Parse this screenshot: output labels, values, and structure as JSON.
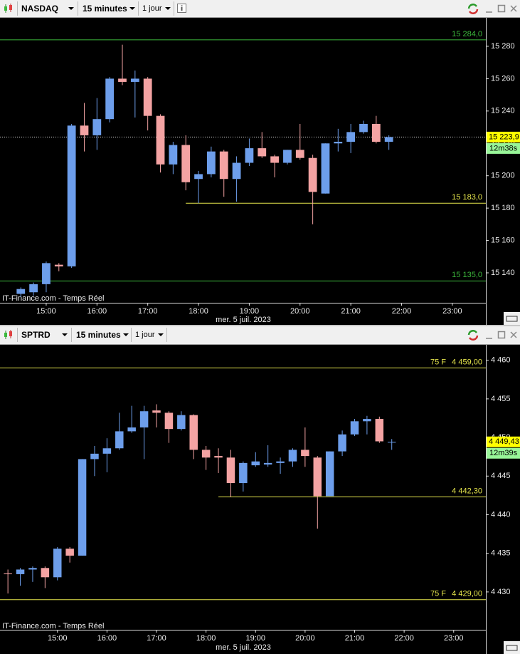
{
  "chart_data": [
    {
      "type": "candlestick",
      "symbol": "NASDAQ",
      "interval": "15 minutes",
      "range": "1 jour",
      "watermark": "IT-Finance.com - Temps Réel",
      "x_label": "mer. 5 juil. 2023",
      "up_color": "#6d9eeb",
      "down_color": "#f4a3a3",
      "grid": false,
      "x": [
        14.5,
        14.75,
        15,
        15.25,
        15.5,
        15.75,
        16,
        16.25,
        16.5,
        16.75,
        17,
        17.25,
        17.5,
        17.75,
        18,
        18.25,
        18.5,
        18.75,
        19,
        19.25,
        19.5,
        19.75,
        20,
        20.25,
        20.5,
        20.75,
        21,
        21.25,
        21.5,
        21.75
      ],
      "open": [
        15127,
        15128,
        15133,
        15145,
        15144,
        15231,
        15225,
        15235,
        15260,
        15258,
        15260,
        15237,
        15207,
        15219,
        15198,
        15201,
        15215,
        15198,
        15208,
        15217,
        15212,
        15208,
        15216,
        15211,
        15189,
        15220,
        15221,
        15227,
        15232,
        15221
      ],
      "high": [
        15131,
        15134,
        15147,
        15146,
        15232,
        15245,
        15248,
        15261,
        15281,
        15265,
        15261,
        15238,
        15221,
        15225,
        15203,
        15218,
        15216,
        15212,
        15223,
        15227,
        15213,
        15216,
        15232,
        15213,
        15220,
        15229,
        15232,
        15234,
        15237,
        15225
      ],
      "low": [
        15125,
        15126,
        15128,
        15141,
        15143,
        15215,
        15216,
        15233,
        15256,
        15236,
        15228,
        15202,
        15201,
        15191,
        15183,
        15199,
        15187,
        15184,
        15206,
        15211,
        15199,
        15207,
        15210,
        15170,
        15189,
        15215,
        15214,
        15226,
        15220,
        15216
      ],
      "close": [
        15130,
        15133,
        15146,
        15144,
        15231,
        15225,
        15235,
        15260,
        15258,
        15260,
        15237,
        15207,
        15219,
        15196,
        15201,
        15215,
        15198,
        15208,
        15217,
        15212,
        15208,
        15216,
        15211,
        15190,
        15220,
        15221,
        15227,
        15232,
        15221,
        15223.9
      ],
      "xlim": [
        14.09,
        23.66
      ],
      "xticks": [
        {
          "value": 15,
          "label": "15:00"
        },
        {
          "value": 16,
          "label": "16:00"
        },
        {
          "value": 17,
          "label": "17:00"
        },
        {
          "value": 18,
          "label": "18:00"
        },
        {
          "value": 19,
          "label": "19:00"
        },
        {
          "value": 20,
          "label": "20:00"
        },
        {
          "value": 21,
          "label": "21:00"
        },
        {
          "value": 22,
          "label": "22:00"
        },
        {
          "value": 23,
          "label": "23:00"
        }
      ],
      "ylim": [
        15121.5,
        15297.6
      ],
      "yticks": [
        {
          "value": 15140,
          "label": "15 140"
        },
        {
          "value": 15160,
          "label": "15 160"
        },
        {
          "value": 15180,
          "label": "15 180"
        },
        {
          "value": 15200,
          "label": "15 200"
        },
        {
          "value": 15220,
          "label": "15 220"
        },
        {
          "value": 15240,
          "label": "15 240"
        },
        {
          "value": 15260,
          "label": "15 260"
        },
        {
          "value": 15280,
          "label": "15 280"
        }
      ],
      "levels": [
        {
          "value": 15284,
          "label": "15 284,0",
          "color": "#3cb93c"
        },
        {
          "value": 15183,
          "label": "15 183,0",
          "color": "#e6e64c",
          "from": 17.75
        },
        {
          "value": 15135,
          "label": "15 135,0",
          "color": "#3cb93c"
        }
      ],
      "last": {
        "value": 15223.9,
        "label": "15 223,9"
      },
      "last_dotted": true,
      "timer": "12m38s"
    },
    {
      "type": "candlestick",
      "symbol": "SPTRD",
      "interval": "15 minutes",
      "range": "1 jour",
      "watermark": "IT-Finance.com - Temps Réel",
      "x_label": "mer. 5 juil. 2023",
      "up_color": "#6d9eeb",
      "down_color": "#f4a3a3",
      "grid": false,
      "x": [
        14,
        14.25,
        14.5,
        14.75,
        15,
        15.25,
        15.5,
        15.75,
        16,
        16.25,
        16.5,
        16.75,
        17,
        17.25,
        17.5,
        17.75,
        18,
        18.25,
        18.5,
        18.75,
        19,
        19.25,
        19.5,
        19.75,
        20,
        20.25,
        20.5,
        20.75,
        21,
        21.25,
        21.5,
        21.75
      ],
      "open": [
        4432.4,
        4432.3,
        4432.9,
        4433.1,
        4431.9,
        4435.6,
        4434.7,
        4447.2,
        4447.9,
        4448.6,
        4450.8,
        4451.3,
        4453.5,
        4453.2,
        4451.1,
        4452.9,
        4448.4,
        4447.6,
        4447.4,
        4444.1,
        4446.4,
        4446.5,
        4446.7,
        4446.9,
        4448.4,
        4447.4,
        4442.4,
        4448.2,
        4450.4,
        4452.1,
        4452.4,
        4449.4
      ],
      "high": [
        4432.9,
        4433.1,
        4433.3,
        4433.3,
        4435.8,
        4435.8,
        4447.2,
        4448.9,
        4449.9,
        4453.2,
        4454.1,
        4454.1,
        4454.3,
        4453.4,
        4453.4,
        4453.0,
        4448.9,
        4448.6,
        4448.4,
        4446.9,
        4448.1,
        4449.0,
        4447.4,
        4448.6,
        4451.3,
        4447.6,
        4448.2,
        4450.9,
        4452.4,
        4452.8,
        4452.7,
        4449.8
      ],
      "low": [
        4429.8,
        4430.8,
        4431.3,
        4430.5,
        4431.5,
        4433.8,
        4434.7,
        4445.0,
        4445.5,
        4448.4,
        4450.6,
        4447.2,
        4451.3,
        4449.3,
        4450.9,
        4447.2,
        4445.8,
        4445.4,
        4442.3,
        4443.0,
        4446.2,
        4446.2,
        4445.3,
        4446.2,
        4446.2,
        4438.2,
        4442.4,
        4447.6,
        4450.2,
        4450.4,
        4449.3,
        4448.4
      ],
      "close": [
        4432.3,
        4432.9,
        4433.1,
        4431.9,
        4435.6,
        4434.7,
        4447.2,
        4447.9,
        4448.6,
        4450.8,
        4451.3,
        4453.4,
        4453.2,
        4451.1,
        4452.9,
        4448.4,
        4447.4,
        4447.4,
        4444.1,
        4446.7,
        4446.9,
        4446.7,
        4446.9,
        4448.4,
        4447.6,
        4442.4,
        4448.2,
        4450.4,
        4452.1,
        4452.4,
        4449.5,
        4449.43
      ],
      "xlim": [
        13.84,
        23.65
      ],
      "xticks": [
        {
          "value": 15,
          "label": "15:00"
        },
        {
          "value": 16,
          "label": "16:00"
        },
        {
          "value": 17,
          "label": "17:00"
        },
        {
          "value": 18,
          "label": "18:00"
        },
        {
          "value": 19,
          "label": "19:00"
        },
        {
          "value": 20,
          "label": "20:00"
        },
        {
          "value": 21,
          "label": "21:00"
        },
        {
          "value": 22,
          "label": "22:00"
        },
        {
          "value": 23,
          "label": "23:00"
        }
      ],
      "ylim": [
        4425.1,
        4462.0
      ],
      "yticks": [
        {
          "value": 4430,
          "label": "4 430"
        },
        {
          "value": 4435,
          "label": "4 435"
        },
        {
          "value": 4440,
          "label": "4 440"
        },
        {
          "value": 4445,
          "label": "4 445"
        },
        {
          "value": 4450,
          "label": "4 450"
        },
        {
          "value": 4455,
          "label": "4 455"
        },
        {
          "value": 4460,
          "label": "4 460"
        }
      ],
      "levels": [
        {
          "value": 4459,
          "label": "4 459,00",
          "tag": "75 F",
          "color": "#e6e64c"
        },
        {
          "value": 4442.3,
          "label": "4 442,30",
          "color": "#e6e64c",
          "from": 18.25
        },
        {
          "value": 4429,
          "label": "4 429,00",
          "tag": "75 F",
          "color": "#e6e64c"
        }
      ],
      "last": {
        "value": 4449.43,
        "label": "4 449,43"
      },
      "last_dotted": false,
      "timer": "12m39s"
    }
  ]
}
